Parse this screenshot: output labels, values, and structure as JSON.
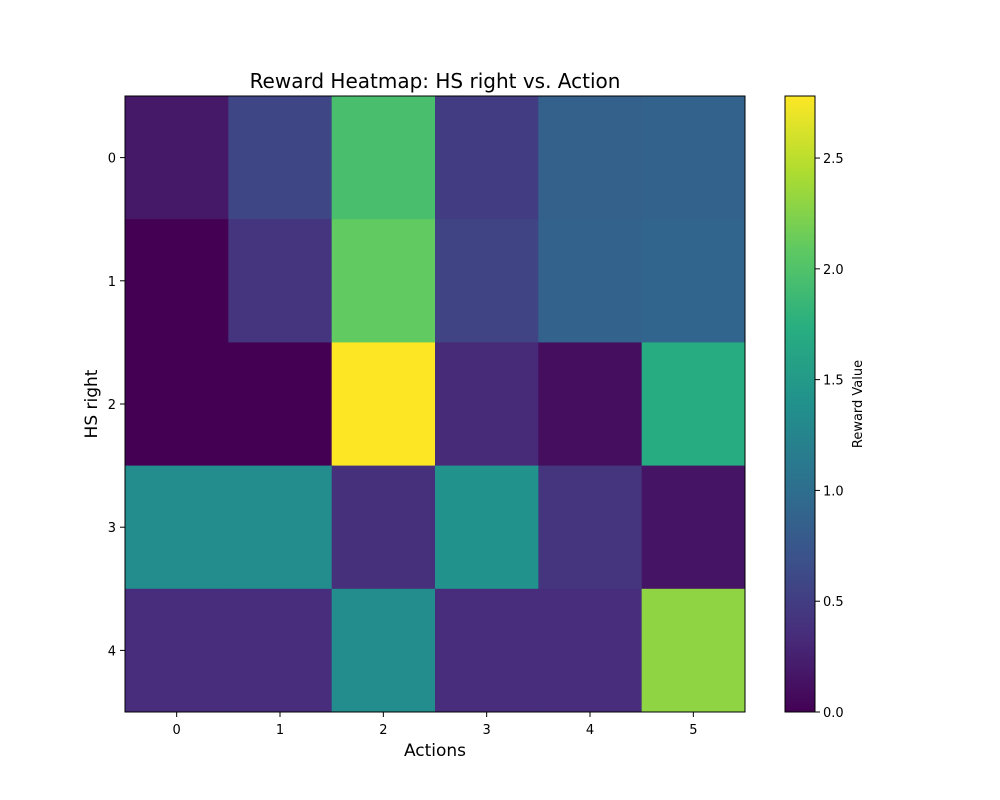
{
  "chart_data": {
    "type": "heatmap",
    "title": "Reward Heatmap: HS right vs. Action",
    "xlabel": "Actions",
    "ylabel": "HS right",
    "x_categories": [
      "0",
      "1",
      "2",
      "3",
      "4",
      "5"
    ],
    "y_categories": [
      "0",
      "1",
      "2",
      "3",
      "4"
    ],
    "values": [
      [
        0.18,
        0.58,
        1.95,
        0.5,
        0.85,
        0.88
      ],
      [
        0.0,
        0.42,
        2.1,
        0.55,
        0.88,
        0.9
      ],
      [
        0.0,
        0.0,
        2.78,
        0.32,
        0.1,
        1.7
      ],
      [
        1.35,
        1.35,
        0.38,
        1.4,
        0.42,
        0.15
      ],
      [
        0.35,
        0.35,
        1.35,
        0.35,
        0.35,
        2.3
      ]
    ],
    "vmin": 0.0,
    "vmax": 2.78,
    "colormap": "viridis",
    "colorbar": {
      "label": "Reward Value",
      "ticks": [
        0.0,
        0.5,
        1.0,
        1.5,
        2.0,
        2.5
      ],
      "tick_labels": [
        "0.0",
        "0.5",
        "1.0",
        "1.5",
        "2.0",
        "2.5"
      ]
    }
  }
}
